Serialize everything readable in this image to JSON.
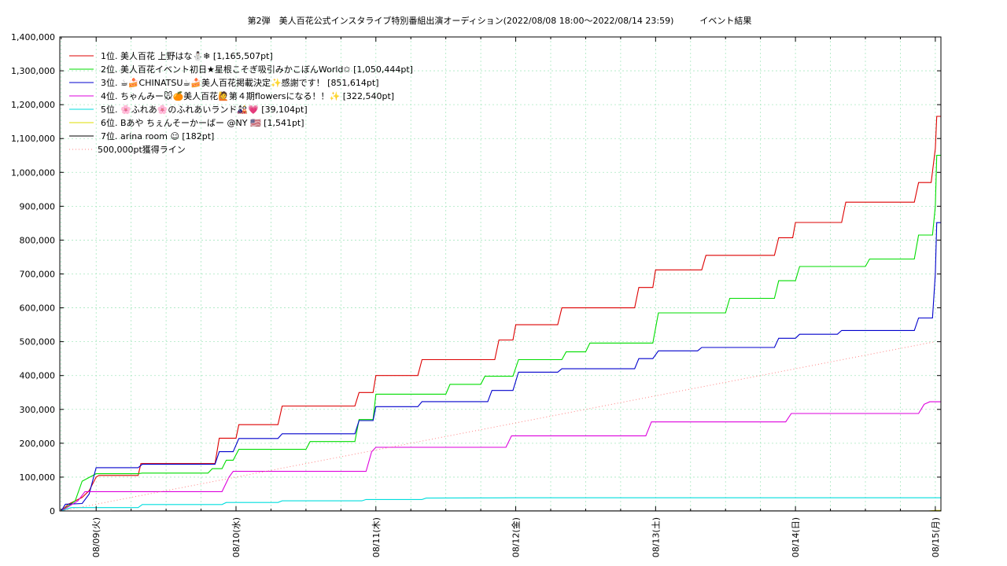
{
  "chart_data": {
    "type": "line",
    "title": "第2弾　美人百花公式インスタライブ特別番組出演オーディション(2022/08/08 18:00〜2022/08/14 23:59)　　　イベント結果",
    "xlabel": "",
    "ylabel": "",
    "x_range_days": [
      -0.26,
      6.04
    ],
    "ylim": [
      0,
      1400000
    ],
    "y_ticks": [
      0,
      100000,
      200000,
      300000,
      400000,
      500000,
      600000,
      700000,
      800000,
      900000,
      1000000,
      1100000,
      1200000,
      1300000,
      1400000
    ],
    "y_tick_labels": [
      "0",
      "100,000",
      "200,000",
      "300,000",
      "400,000",
      "500,000",
      "600,000",
      "700,000",
      "800,000",
      "900,000",
      "1,000,000",
      "1,100,000",
      "1,200,000",
      "1,300,000",
      "1,400,000"
    ],
    "x_ticks": [
      0,
      1,
      2,
      3,
      4,
      5,
      6
    ],
    "x_tick_labels": [
      "08/09(火)",
      "08/10(水)",
      "08/11(木)",
      "08/12(金)",
      "08/13(土)",
      "08/14(日)",
      "08/15(月)"
    ],
    "grid": true,
    "legend_position": "top-left",
    "series": [
      {
        "name": "1位. 美人百花 上野はな⛄❄ [1,165,507pt]",
        "color": "#dd0000",
        "points": [
          [
            -0.25,
            0
          ],
          [
            -0.2,
            20000
          ],
          [
            -0.15,
            30000
          ],
          [
            -0.1,
            40000
          ],
          [
            -0.05,
            60000
          ],
          [
            0,
            100000
          ],
          [
            0.02,
            105000
          ],
          [
            0.3,
            105000
          ],
          [
            0.32,
            140000
          ],
          [
            0.85,
            140000
          ],
          [
            0.88,
            215000
          ],
          [
            1.0,
            215000
          ],
          [
            1.02,
            255000
          ],
          [
            1.3,
            255000
          ],
          [
            1.33,
            310000
          ],
          [
            1.85,
            310000
          ],
          [
            1.88,
            350000
          ],
          [
            1.98,
            350000
          ],
          [
            2.0,
            400000
          ],
          [
            2.3,
            400000
          ],
          [
            2.33,
            447000
          ],
          [
            2.85,
            447000
          ],
          [
            2.88,
            505000
          ],
          [
            2.98,
            505000
          ],
          [
            3.0,
            550000
          ],
          [
            3.3,
            550000
          ],
          [
            3.33,
            600000
          ],
          [
            3.85,
            600000
          ],
          [
            3.88,
            660000
          ],
          [
            3.98,
            660000
          ],
          [
            4.0,
            712000
          ],
          [
            4.33,
            712000
          ],
          [
            4.36,
            755000
          ],
          [
            4.85,
            755000
          ],
          [
            4.88,
            807000
          ],
          [
            4.98,
            807000
          ],
          [
            5.0,
            852000
          ],
          [
            5.33,
            852000
          ],
          [
            5.36,
            912000
          ],
          [
            5.85,
            912000
          ],
          [
            5.88,
            970000
          ],
          [
            5.97,
            970000
          ],
          [
            6.0,
            1070000
          ],
          [
            6.01,
            1165507
          ],
          [
            6.1,
            1165507
          ]
        ]
      },
      {
        "name": "2位. 美人百花イベント初日★星根こそぎ吸引みかこぼんWorld✩ [1,050,444pt]",
        "color": "#00dd00",
        "points": [
          [
            -0.25,
            0
          ],
          [
            -0.15,
            30000
          ],
          [
            -0.1,
            88000
          ],
          [
            0,
            110000
          ],
          [
            0.3,
            110000
          ],
          [
            0.33,
            112000
          ],
          [
            0.8,
            112000
          ],
          [
            0.83,
            125000
          ],
          [
            0.9,
            125000
          ],
          [
            0.93,
            150000
          ],
          [
            0.98,
            150000
          ],
          [
            1.02,
            182000
          ],
          [
            1.5,
            182000
          ],
          [
            1.53,
            205000
          ],
          [
            1.85,
            205000
          ],
          [
            1.88,
            270000
          ],
          [
            1.98,
            270000
          ],
          [
            2.0,
            345000
          ],
          [
            2.5,
            345000
          ],
          [
            2.53,
            374000
          ],
          [
            2.75,
            374000
          ],
          [
            2.78,
            398000
          ],
          [
            2.98,
            398000
          ],
          [
            3.02,
            447000
          ],
          [
            3.33,
            447000
          ],
          [
            3.36,
            470000
          ],
          [
            3.5,
            470000
          ],
          [
            3.53,
            496000
          ],
          [
            3.98,
            496000
          ],
          [
            4.02,
            585000
          ],
          [
            4.5,
            585000
          ],
          [
            4.53,
            628000
          ],
          [
            4.85,
            628000
          ],
          [
            4.88,
            680000
          ],
          [
            5.0,
            680000
          ],
          [
            5.03,
            722000
          ],
          [
            5.5,
            722000
          ],
          [
            5.53,
            744000
          ],
          [
            5.85,
            744000
          ],
          [
            5.88,
            815000
          ],
          [
            5.98,
            815000
          ],
          [
            6.0,
            900000
          ],
          [
            6.01,
            1050444
          ],
          [
            6.1,
            1050444
          ]
        ]
      },
      {
        "name": "3位. ☕🍰CHINATSU☕🍰美人百花掲載決定✨感謝です！ [851,614pt]",
        "color": "#0000cc",
        "points": [
          [
            -0.25,
            0
          ],
          [
            -0.22,
            20000
          ],
          [
            -0.1,
            22000
          ],
          [
            -0.05,
            50000
          ],
          [
            0,
            128000
          ],
          [
            0.3,
            128000
          ],
          [
            0.33,
            138000
          ],
          [
            0.85,
            138000
          ],
          [
            0.88,
            175000
          ],
          [
            0.98,
            175000
          ],
          [
            1.02,
            214000
          ],
          [
            1.3,
            214000
          ],
          [
            1.33,
            228000
          ],
          [
            1.85,
            228000
          ],
          [
            1.88,
            267000
          ],
          [
            1.98,
            267000
          ],
          [
            2.0,
            308000
          ],
          [
            2.3,
            308000
          ],
          [
            2.33,
            323000
          ],
          [
            2.8,
            323000
          ],
          [
            2.83,
            356000
          ],
          [
            2.98,
            356000
          ],
          [
            3.02,
            410000
          ],
          [
            3.3,
            410000
          ],
          [
            3.33,
            420000
          ],
          [
            3.85,
            420000
          ],
          [
            3.88,
            450000
          ],
          [
            3.98,
            450000
          ],
          [
            4.02,
            473000
          ],
          [
            4.3,
            473000
          ],
          [
            4.33,
            483000
          ],
          [
            4.85,
            483000
          ],
          [
            4.88,
            510000
          ],
          [
            5.0,
            510000
          ],
          [
            5.03,
            522000
          ],
          [
            5.3,
            522000
          ],
          [
            5.33,
            533000
          ],
          [
            5.85,
            533000
          ],
          [
            5.88,
            570000
          ],
          [
            5.98,
            570000
          ],
          [
            6.0,
            700000
          ],
          [
            6.01,
            851614
          ],
          [
            6.1,
            851614
          ]
        ]
      },
      {
        "name": "4位. ちゃんみー🐭🍊美人百花🙋第４期flowersになる！！✨ [322,540pt]",
        "color": "#dd00dd",
        "points": [
          [
            -0.25,
            0
          ],
          [
            -0.13,
            30000
          ],
          [
            -0.08,
            57000
          ],
          [
            0.9,
            57000
          ],
          [
            0.95,
            100000
          ],
          [
            0.98,
            117000
          ],
          [
            1.93,
            117000
          ],
          [
            1.97,
            175000
          ],
          [
            2.0,
            188000
          ],
          [
            2.93,
            188000
          ],
          [
            2.97,
            222000
          ],
          [
            3.93,
            222000
          ],
          [
            3.97,
            263000
          ],
          [
            4.93,
            263000
          ],
          [
            4.97,
            288000
          ],
          [
            5.88,
            288000
          ],
          [
            5.92,
            315000
          ],
          [
            5.96,
            322540
          ],
          [
            6.1,
            322540
          ]
        ]
      },
      {
        "name": "5位. 🌸ふれあ🌸のふれあいランド🎎💗 [39,104pt]",
        "color": "#00dddd",
        "points": [
          [
            -0.25,
            0
          ],
          [
            -0.18,
            10000
          ],
          [
            0.3,
            10000
          ],
          [
            0.33,
            19000
          ],
          [
            0.9,
            19000
          ],
          [
            0.93,
            25000
          ],
          [
            1.3,
            25000
          ],
          [
            1.33,
            30000
          ],
          [
            1.9,
            30000
          ],
          [
            1.93,
            34000
          ],
          [
            2.33,
            34000
          ],
          [
            2.36,
            38000
          ],
          [
            3.0,
            39000
          ],
          [
            6.1,
            39104
          ]
        ]
      },
      {
        "name": "6位. Bあや ちぇんそーかーばー @NY 🇺🇸 [1,541pt]",
        "color": "#dddd00",
        "points": [
          [
            -0.25,
            0
          ],
          [
            5.95,
            0
          ],
          [
            6.0,
            1541
          ],
          [
            6.1,
            1541
          ]
        ]
      },
      {
        "name": "7位. arina room ☺ [182pt]",
        "color": "#000000",
        "points": [
          [
            -0.25,
            0
          ],
          [
            6.1,
            182
          ]
        ]
      },
      {
        "name": "500,000pt獲得ライン",
        "color": "#ff8080",
        "dashed": true,
        "points": [
          [
            -0.25,
            0
          ],
          [
            6.0,
            500000
          ]
        ]
      }
    ]
  }
}
